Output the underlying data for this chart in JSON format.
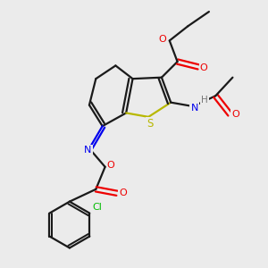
{
  "bg_color": "#ebebeb",
  "bond_color": "#1a1a1a",
  "S_color": "#b8b800",
  "N_color": "#0000ee",
  "O_color": "#ee0000",
  "Cl_color": "#00bb00",
  "H_color": "#777777",
  "C_color": "#1a1a1a",
  "line_width": 1.6,
  "figsize": [
    3.0,
    3.0
  ],
  "dpi": 100,
  "xlim": [
    0,
    10
  ],
  "ylim": [
    0,
    10
  ]
}
